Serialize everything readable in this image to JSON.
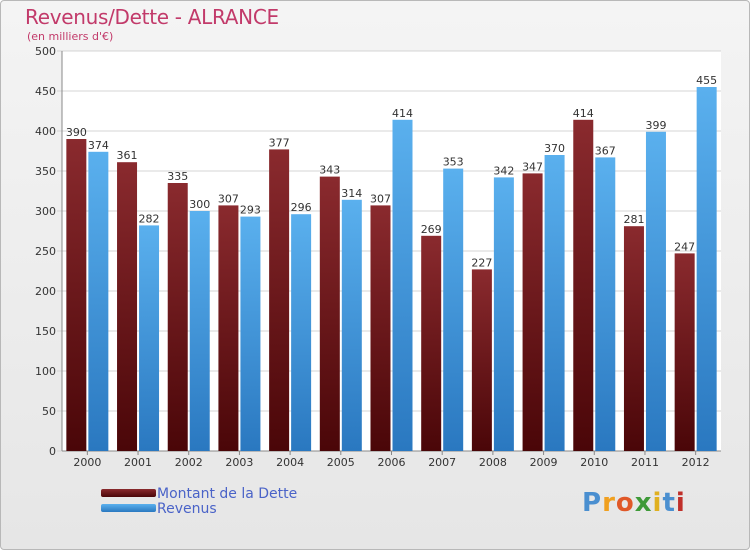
{
  "chart_data": {
    "type": "bar",
    "title": "Revenus/Dette - ALRANCE",
    "subtitle": "(en milliers d'€)",
    "categories": [
      "2000",
      "2001",
      "2002",
      "2003",
      "2004",
      "2005",
      "2006",
      "2007",
      "2008",
      "2009",
      "2010",
      "2011",
      "2012"
    ],
    "series": [
      {
        "name": "Montant de la Dette",
        "color": "#7a1a1e",
        "values": [
          390,
          361,
          335,
          307,
          377,
          343,
          307,
          269,
          227,
          347,
          414,
          281,
          247
        ]
      },
      {
        "name": "Revenus",
        "color": "#4aa3e6",
        "values": [
          374,
          282,
          300,
          293,
          296,
          314,
          414,
          353,
          342,
          370,
          367,
          399,
          455
        ]
      }
    ],
    "ylim": [
      0,
      500
    ],
    "yticks": [
      0,
      50,
      100,
      150,
      200,
      250,
      300,
      350,
      400,
      450,
      500
    ],
    "grid": true,
    "legend_position": "bottom-left"
  },
  "brand": {
    "letters": [
      "P",
      "r",
      "o",
      "x",
      "i",
      "t",
      "i"
    ],
    "colors": [
      "#4a8fd0",
      "#f0a020",
      "#e05828",
      "#3e9a38",
      "#e0b020",
      "#4a8fd0",
      "#c0302a"
    ]
  }
}
